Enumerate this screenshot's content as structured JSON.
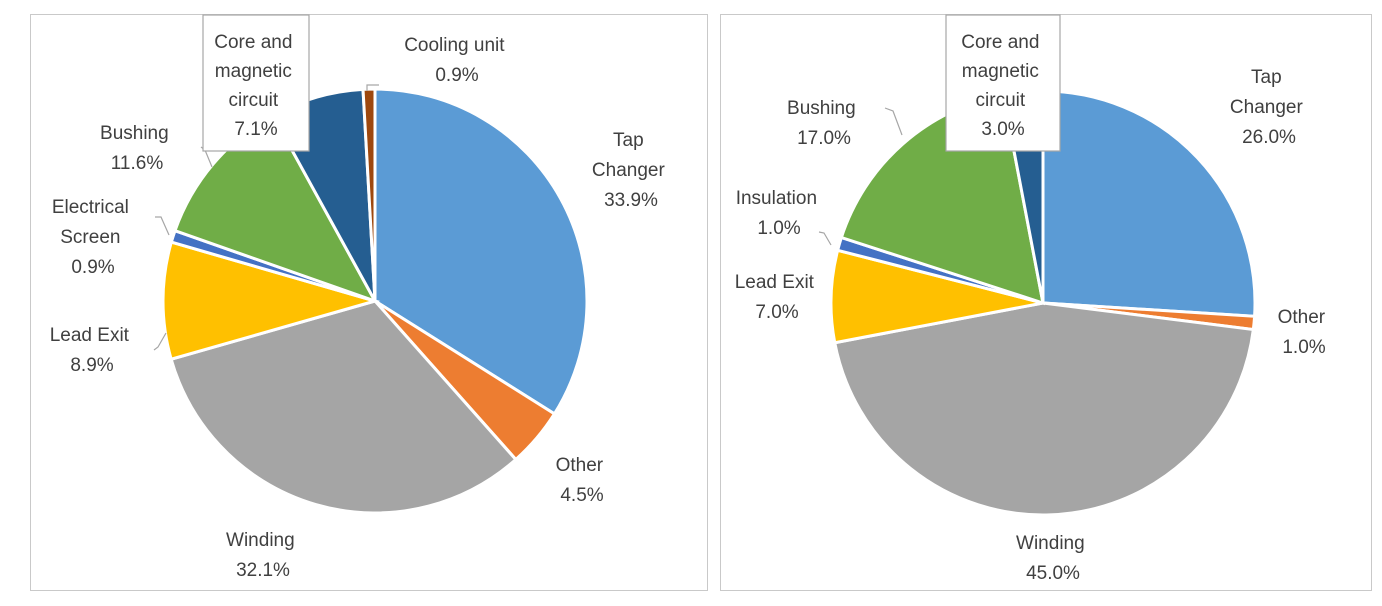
{
  "chart_data": [
    {
      "type": "pie",
      "start_angle_deg": 0,
      "direction": "clockwise",
      "slices": [
        {
          "label": "Tap Changer",
          "value": 33.9,
          "value_label": "33.9%",
          "color": "#5b9bd5"
        },
        {
          "label": "Other",
          "value": 4.5,
          "value_label": "4.5%",
          "color": "#ed7d31"
        },
        {
          "label": "Winding",
          "value": 32.1,
          "value_label": "32.1%",
          "color": "#a5a5a5"
        },
        {
          "label": "Lead Exit",
          "value": 8.9,
          "value_label": "8.9%",
          "color": "#ffc000"
        },
        {
          "label": "Electrical Screen",
          "value": 0.9,
          "value_label": "0.9%",
          "color": "#4472c4"
        },
        {
          "label": "Bushing",
          "value": 11.6,
          "value_label": "11.6%",
          "color": "#70ad47"
        },
        {
          "label": "Core and magnetic circuit",
          "value": 7.1,
          "value_label": "7.1%",
          "color": "#255e91"
        },
        {
          "label": "Cooling unit",
          "value": 0.9,
          "value_label": "0.9%",
          "color": "#9e480e"
        }
      ]
    },
    {
      "type": "pie",
      "start_angle_deg": 0,
      "direction": "clockwise",
      "slices": [
        {
          "label": "Tap Changer",
          "value": 26.0,
          "value_label": "26.0%",
          "color": "#5b9bd5"
        },
        {
          "label": "Other",
          "value": 1.0,
          "value_label": "1.0%",
          "color": "#ed7d31"
        },
        {
          "label": "Winding",
          "value": 45.0,
          "value_label": "45.0%",
          "color": "#a5a5a5"
        },
        {
          "label": "Lead Exit",
          "value": 7.0,
          "value_label": "7.0%",
          "color": "#ffc000"
        },
        {
          "label": "Insulation",
          "value": 1.0,
          "value_label": "1.0%",
          "color": "#4472c4"
        },
        {
          "label": "Bushing",
          "value": 17.0,
          "value_label": "17.0%",
          "color": "#70ad47"
        },
        {
          "label": "Core and magnetic circuit",
          "value": 3.0,
          "value_label": "3.0%",
          "color": "#255e91"
        }
      ]
    }
  ],
  "labels": {
    "left": {
      "tap_changer": {
        "line1": "Tap",
        "line2": "Changer",
        "pct": "33.9%"
      },
      "other": {
        "line1": "Other",
        "pct": "4.5%"
      },
      "winding": {
        "line1": "Winding",
        "pct": "32.1%"
      },
      "lead_exit": {
        "line1": "Lead Exit",
        "pct": "8.9%"
      },
      "electrical_screen": {
        "line1": "Electrical",
        "line2": "Screen",
        "pct": "0.9%"
      },
      "bushing": {
        "line1": "Bushing",
        "pct": "11.6%"
      },
      "core": {
        "line1": "Core and",
        "line2": "magnetic",
        "line3": "circuit",
        "pct": "7.1%"
      },
      "cooling": {
        "line1": "Cooling unit",
        "pct": "0.9%"
      }
    },
    "right": {
      "tap_changer": {
        "line1": "Tap",
        "line2": "Changer",
        "pct": "26.0%"
      },
      "other": {
        "line1": "Other",
        "pct": "1.0%"
      },
      "winding": {
        "line1": "Winding",
        "pct": "45.0%"
      },
      "lead_exit": {
        "line1": "Lead Exit",
        "pct": "7.0%"
      },
      "insulation": {
        "line1": "Insulation",
        "pct": "1.0%"
      },
      "bushing": {
        "line1": "Bushing",
        "pct": "17.0%"
      },
      "core": {
        "line1": "Core and",
        "line2": "magnetic",
        "line3": "circuit",
        "pct": "3.0%"
      }
    }
  }
}
